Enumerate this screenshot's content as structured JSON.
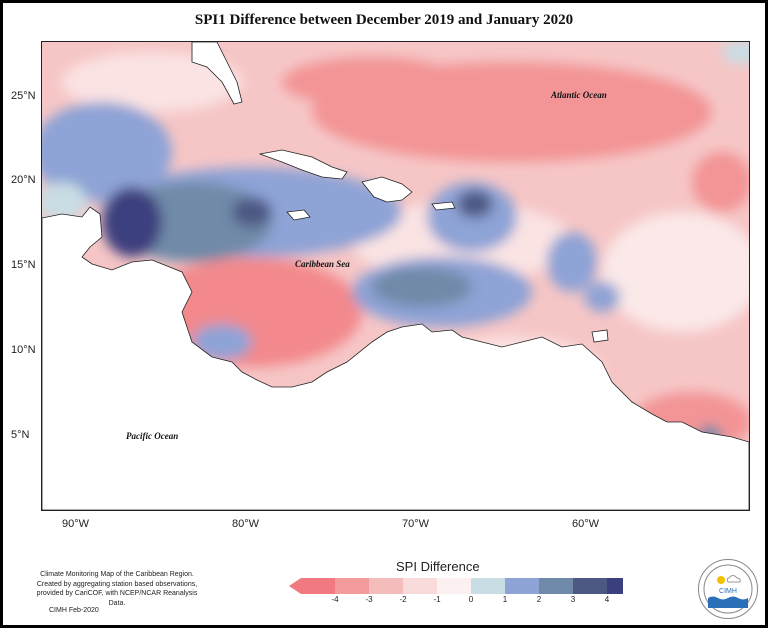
{
  "title": "SPI1 Difference between December 2019 and January 2020",
  "lat_ticks": [
    "25°N",
    "20°N",
    "15°N",
    "10°N",
    "5°N"
  ],
  "lon_ticks": [
    "90°W",
    "80°W",
    "70°W",
    "60°W"
  ],
  "ocean_labels": {
    "atlantic": "Atlantic Ocean",
    "caribbean": "Caribbean Sea",
    "pacific": "Pacific Ocean"
  },
  "credit_lines": [
    "Climate Monitoring Map of the Caribbean Region.",
    "Created by aggregating station based observations,",
    "provided by CariCOF, with NCEP/NCAR Reanalysis Data."
  ],
  "credit_date": "CIMH Feb-2020",
  "legend": {
    "title": "SPI Difference",
    "labels": [
      "-4",
      "-3",
      "-2",
      "-1",
      "0",
      "1",
      "2",
      "3",
      "4"
    ],
    "colors": [
      "#f07a7f",
      "#f29a9c",
      "#f5bcbc",
      "#f9dbdb",
      "#fdf0f0",
      "#c9dde4",
      "#8ea3d6",
      "#6f8aa8",
      "#4d5884",
      "#3c3f7e"
    ]
  },
  "logo": {
    "text": "CIMH",
    "colors": {
      "ring": "#888888",
      "water": "#2a6fb8",
      "sun": "#f2c200"
    }
  }
}
